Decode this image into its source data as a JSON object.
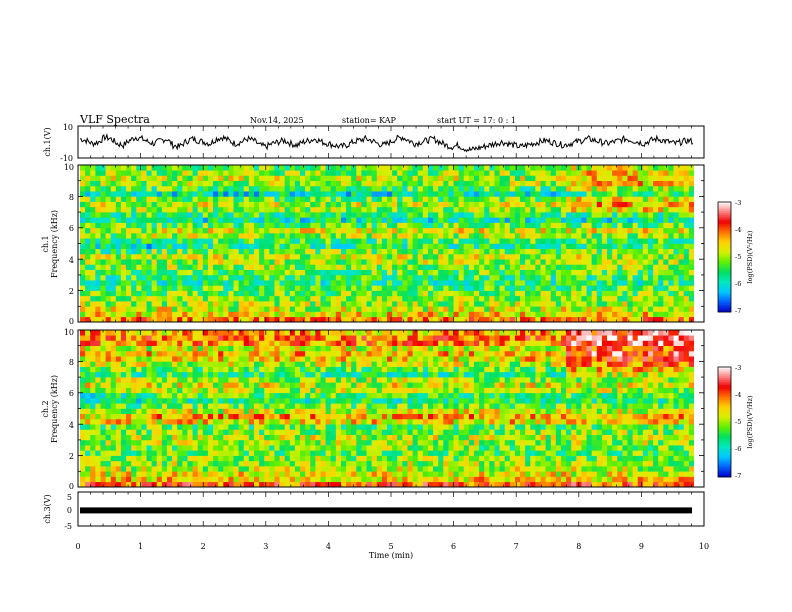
{
  "header": {
    "title": "VLF Spectra",
    "date": "Nov.14, 2025",
    "station": "station= KAP",
    "start": "start  UT =   17: 0  : 1"
  },
  "colors": {
    "colormap": [
      "#0000c8",
      "#0060ff",
      "#00c8ff",
      "#00e8c0",
      "#00e060",
      "#60f000",
      "#d8f000",
      "#ffd000",
      "#ff7000",
      "#f00000",
      "#ff8080",
      "#ffffff"
    ]
  },
  "chart_data": [
    {
      "type": "line",
      "id": "ch1_waveform",
      "ylabel": "ch.1(V)",
      "ylim": [
        -10,
        10
      ],
      "ytick_labels": [
        "10",
        "-10"
      ],
      "x_range_min": [
        0,
        10
      ],
      "series": [
        {
          "name": "ch.1",
          "values": [
            2,
            1,
            -1,
            0,
            3,
            2,
            -1,
            -2,
            1,
            3,
            2,
            0,
            -1,
            1,
            2,
            -2,
            -3,
            0,
            2,
            1,
            0,
            -1,
            2,
            3,
            1,
            -1,
            0,
            2,
            1,
            -2,
            -3,
            -1,
            0,
            1,
            -1,
            -2,
            0,
            1,
            2,
            0,
            -1,
            -2,
            -3,
            -2,
            0,
            1,
            2,
            1,
            -1,
            -2,
            0,
            2,
            3,
            1,
            -1,
            0,
            1,
            2,
            0,
            -2,
            -3,
            -2,
            -4,
            -5,
            -4,
            -3,
            -2,
            -1,
            0,
            -1,
            -2,
            -3,
            -2,
            -1,
            0,
            1,
            0,
            -1,
            -2,
            -1,
            0,
            1,
            2,
            1,
            0,
            -1,
            0,
            1,
            2,
            1,
            0,
            -1,
            1,
            2,
            1,
            0,
            -1,
            0,
            1,
            0
          ]
        }
      ]
    },
    {
      "type": "heatmap",
      "id": "ch1_spectrogram",
      "ylabel_line1": "ch.1",
      "ylabel_line2": "Frequency (kHz)",
      "y_range_khz": [
        0,
        10
      ],
      "x_range_min": [
        0,
        10
      ],
      "ytick_labels": [
        "0",
        "2",
        "4",
        "6",
        "8",
        "10"
      ],
      "colorbar": {
        "label": "log(PSD)(V²/Hz)",
        "range": [
          -7,
          -3
        ],
        "tick_labels": [
          "-3",
          "-4",
          "-5",
          "-6",
          "-7"
        ]
      },
      "band_log_psd": [
        -4.2,
        -4.6,
        -4.8,
        -5.0,
        -5.1,
        -5.2,
        -5.4,
        -5.6,
        -5.5,
        -5.3,
        -5.1,
        -5.0,
        -4.9,
        -5.2,
        -5.6,
        -5.4,
        -5.0,
        -4.8,
        -5.3,
        -5.8,
        -5.5,
        -5.1,
        -4.9,
        -5.2,
        -5.9,
        -5.4,
        -5.0,
        -4.9,
        -5.1,
        -5.3
      ]
    },
    {
      "type": "heatmap",
      "id": "ch2_spectrogram",
      "ylabel_line1": "ch.2",
      "ylabel_line2": "Frequency (kHz)",
      "y_range_khz": [
        0,
        10
      ],
      "x_range_min": [
        0,
        10
      ],
      "ytick_labels": [
        "0",
        "2",
        "4",
        "6",
        "8",
        "10"
      ],
      "colorbar": {
        "label": "log(PSD)(V²/Hz)",
        "range": [
          -7,
          -3
        ],
        "tick_labels": [
          "-3",
          "-4",
          "-5",
          "-6",
          "-7"
        ]
      },
      "band_log_psd": [
        -4.0,
        -4.5,
        -4.7,
        -4.9,
        -5.0,
        -5.1,
        -5.3,
        -5.2,
        -5.0,
        -4.9,
        -5.1,
        -5.3,
        -4.6,
        -4.4,
        -4.8,
        -5.2,
        -5.6,
        -5.4,
        -5.0,
        -4.8,
        -5.0,
        -5.6,
        -5.3,
        -4.9,
        -4.6,
        -4.5,
        -4.8,
        -4.2,
        -4.1,
        -4.4
      ]
    },
    {
      "type": "line",
      "id": "ch3_trace",
      "ylabel": "ch.3(V)",
      "ylim": [
        -5,
        5
      ],
      "ytick_labels": [
        "5",
        "0",
        "-5"
      ],
      "level_v": -0.4,
      "x_range_min": [
        0,
        10
      ]
    }
  ],
  "xaxis": {
    "label": "Time  (min)",
    "tick_labels": [
      "0",
      "1",
      "2",
      "3",
      "4",
      "5",
      "6",
      "7",
      "8",
      "9",
      "10"
    ],
    "range": [
      0,
      10
    ]
  }
}
